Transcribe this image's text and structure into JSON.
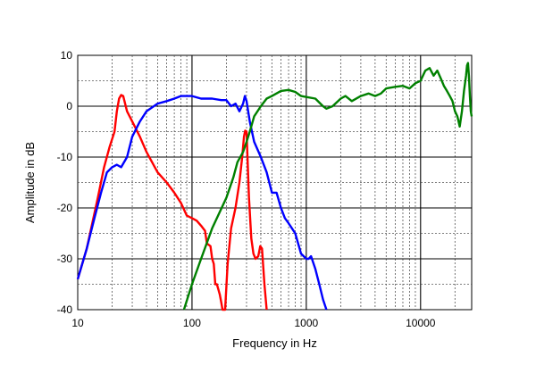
{
  "chart_data": {
    "type": "line",
    "title": "",
    "xlabel": "Frequency in Hz",
    "ylabel": "Amplitude in dB",
    "xscale": "log",
    "xlim": [
      10,
      28000
    ],
    "ylim": [
      -40,
      10
    ],
    "grid": true,
    "x_ticks": [
      10,
      100,
      1000,
      10000
    ],
    "x_tick_labels": [
      "10",
      "100",
      "1000",
      "10000"
    ],
    "y_ticks": [
      10,
      0,
      -10,
      -20,
      -30,
      -40
    ],
    "y_tick_labels": [
      "10",
      "0",
      "-10",
      "-20",
      "-30",
      "-40"
    ],
    "series": [
      {
        "color": "#ff0000",
        "points": [
          [
            10,
            -34
          ],
          [
            12,
            -28
          ],
          [
            15,
            -18
          ],
          [
            17,
            -12
          ],
          [
            19,
            -8
          ],
          [
            21,
            -5
          ],
          [
            22,
            -1
          ],
          [
            23,
            1.5
          ],
          [
            24,
            2.2
          ],
          [
            25,
            2
          ],
          [
            27,
            -1
          ],
          [
            30,
            -3
          ],
          [
            35,
            -6
          ],
          [
            40,
            -9
          ],
          [
            50,
            -13
          ],
          [
            60,
            -15
          ],
          [
            70,
            -17
          ],
          [
            80,
            -19
          ],
          [
            90,
            -21.5
          ],
          [
            100,
            -22
          ],
          [
            110,
            -22.5
          ],
          [
            120,
            -23.5
          ],
          [
            130,
            -24.5
          ],
          [
            135,
            -27
          ],
          [
            145,
            -27.5
          ],
          [
            150,
            -30
          ],
          [
            155,
            -31
          ],
          [
            160,
            -35
          ],
          [
            165,
            -35
          ],
          [
            170,
            -36
          ],
          [
            175,
            -37
          ],
          [
            180,
            -38.5
          ],
          [
            185,
            -40
          ],
          [
            195,
            -40
          ],
          [
            205,
            -31
          ],
          [
            220,
            -24
          ],
          [
            240,
            -20
          ],
          [
            260,
            -15
          ],
          [
            275,
            -10
          ],
          [
            285,
            -6
          ],
          [
            292,
            -4.8
          ],
          [
            300,
            -5
          ],
          [
            315,
            -18
          ],
          [
            330,
            -26
          ],
          [
            345,
            -29
          ],
          [
            360,
            -30
          ],
          [
            380,
            -29.5
          ],
          [
            395,
            -27.5
          ],
          [
            410,
            -28
          ],
          [
            430,
            -35
          ],
          [
            450,
            -40
          ]
        ]
      },
      {
        "color": "#0000ff",
        "points": [
          [
            10,
            -34
          ],
          [
            12,
            -28
          ],
          [
            14,
            -22
          ],
          [
            16,
            -17
          ],
          [
            18,
            -13
          ],
          [
            20,
            -12
          ],
          [
            22,
            -11.5
          ],
          [
            24,
            -12
          ],
          [
            27,
            -10
          ],
          [
            30,
            -6
          ],
          [
            35,
            -3
          ],
          [
            40,
            -1
          ],
          [
            50,
            0.5
          ],
          [
            60,
            1
          ],
          [
            70,
            1.5
          ],
          [
            80,
            2
          ],
          [
            100,
            2
          ],
          [
            120,
            1.5
          ],
          [
            150,
            1.5
          ],
          [
            180,
            1.2
          ],
          [
            200,
            1.2
          ],
          [
            220,
            0
          ],
          [
            240,
            0.5
          ],
          [
            260,
            -1
          ],
          [
            280,
            0.5
          ],
          [
            290,
            2
          ],
          [
            300,
            1
          ],
          [
            320,
            -3
          ],
          [
            350,
            -7
          ],
          [
            400,
            -10
          ],
          [
            450,
            -13
          ],
          [
            500,
            -17
          ],
          [
            550,
            -17
          ],
          [
            600,
            -20
          ],
          [
            650,
            -22
          ],
          [
            700,
            -23
          ],
          [
            800,
            -25
          ],
          [
            900,
            -29
          ],
          [
            1000,
            -30
          ],
          [
            1050,
            -30
          ],
          [
            1100,
            -29.5
          ],
          [
            1200,
            -32
          ],
          [
            1300,
            -35
          ],
          [
            1400,
            -38
          ],
          [
            1500,
            -40
          ]
        ]
      },
      {
        "color": "#008000",
        "points": [
          [
            85,
            -40
          ],
          [
            100,
            -35
          ],
          [
            120,
            -30
          ],
          [
            150,
            -24
          ],
          [
            200,
            -18
          ],
          [
            230,
            -14
          ],
          [
            250,
            -11
          ],
          [
            280,
            -9
          ],
          [
            300,
            -7
          ],
          [
            320,
            -5
          ],
          [
            350,
            -2
          ],
          [
            400,
            0
          ],
          [
            450,
            1.5
          ],
          [
            500,
            2
          ],
          [
            600,
            3
          ],
          [
            700,
            3.2
          ],
          [
            800,
            2.8
          ],
          [
            900,
            2
          ],
          [
            1000,
            1.8
          ],
          [
            1200,
            1.5
          ],
          [
            1400,
            0
          ],
          [
            1500,
            -0.5
          ],
          [
            1700,
            0
          ],
          [
            2000,
            1.5
          ],
          [
            2200,
            2
          ],
          [
            2500,
            1
          ],
          [
            3000,
            2
          ],
          [
            3500,
            2.5
          ],
          [
            4000,
            2
          ],
          [
            4500,
            2.5
          ],
          [
            5000,
            3.5
          ],
          [
            6000,
            3.8
          ],
          [
            7000,
            4
          ],
          [
            8000,
            3.5
          ],
          [
            9000,
            4.5
          ],
          [
            10000,
            5
          ],
          [
            11000,
            7
          ],
          [
            12000,
            7.5
          ],
          [
            13000,
            6
          ],
          [
            14000,
            7
          ],
          [
            15000,
            5.5
          ],
          [
            16000,
            4
          ],
          [
            17000,
            3
          ],
          [
            18000,
            2
          ],
          [
            19000,
            1
          ],
          [
            20000,
            -1
          ],
          [
            21000,
            -2
          ],
          [
            22000,
            -4
          ],
          [
            23000,
            -1
          ],
          [
            24000,
            3
          ],
          [
            25000,
            6
          ],
          [
            25500,
            8
          ],
          [
            26000,
            8.5
          ],
          [
            26500,
            6
          ],
          [
            27000,
            2
          ],
          [
            27500,
            -1
          ],
          [
            28000,
            -2
          ]
        ]
      }
    ]
  }
}
